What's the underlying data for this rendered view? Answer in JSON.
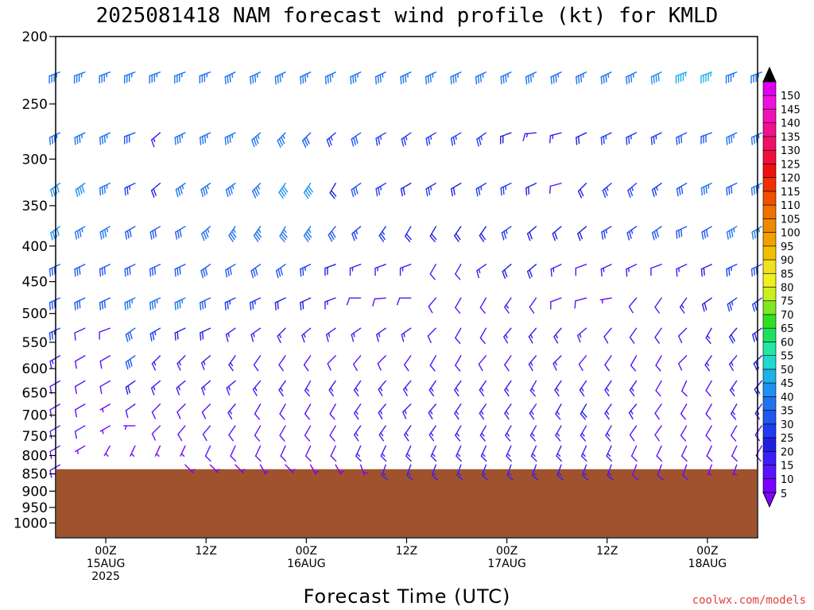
{
  "title": "2025081418 NAM forecast wind profile (kt) for KMLD",
  "credit": "coolwx.com/models",
  "chart_data": {
    "type": "wind-barb-time-height",
    "units": "kt",
    "xlabel": "Forecast Time (UTC)",
    "x_ticks": [
      {
        "hour": 6,
        "lines": [
          "00Z",
          "15AUG",
          "2025"
        ]
      },
      {
        "hour": 18,
        "lines": [
          "12Z"
        ]
      },
      {
        "hour": 30,
        "lines": [
          "00Z",
          "16AUG"
        ]
      },
      {
        "hour": 42,
        "lines": [
          "12Z"
        ]
      },
      {
        "hour": 54,
        "lines": [
          "00Z",
          "17AUG"
        ]
      },
      {
        "hour": 66,
        "lines": [
          "12Z"
        ]
      },
      {
        "hour": 78,
        "lines": [
          "00Z",
          "18AUG"
        ]
      }
    ],
    "xlim_hours": [
      0,
      84
    ],
    "y_scale": "log-pressure",
    "ylim_hpa": [
      1050,
      200
    ],
    "y_ticks": [
      "200",
      "250",
      "300",
      "350",
      "400",
      "450",
      "500",
      "550",
      "600",
      "650",
      "700",
      "750",
      "800",
      "850",
      "900",
      "950",
      "1000"
    ],
    "surface_pressure_hpa": 837,
    "barb_levels_hpa": [
      225,
      275,
      325,
      375,
      425,
      475,
      525,
      575,
      625,
      675,
      725,
      775,
      825
    ],
    "colorbar_ticks": [
      5,
      10,
      15,
      20,
      25,
      30,
      35,
      40,
      45,
      50,
      55,
      60,
      65,
      70,
      75,
      80,
      85,
      90,
      95,
      100,
      105,
      110,
      115,
      120,
      125,
      130,
      135,
      140,
      145,
      150
    ],
    "colorbar_colors": [
      "#7a00ff",
      "#5a12ff",
      "#3a1ef5",
      "#2020e0",
      "#1e3cf0",
      "#1e58f0",
      "#1e74f0",
      "#1e90f0",
      "#1eb0e8",
      "#20d8d0",
      "#20e8a0",
      "#20e060",
      "#30e020",
      "#80e820",
      "#c8f020",
      "#f0f020",
      "#f0e020",
      "#f0c000",
      "#f0a000",
      "#f08800",
      "#f07000",
      "#f05000",
      "#f03000",
      "#f01010",
      "#f0103c",
      "#f01068",
      "#f01090",
      "#f010b8",
      "#f010e0",
      "#e000f0"
    ],
    "colorbar_top_color": "#000000",
    "colorbar_bottom_color": "#8000ff",
    "ground_color": "#a0522d",
    "wind_rows": [
      {
        "p": 225,
        "spd": [
          35,
          35,
          35,
          35,
          35,
          35,
          35,
          35,
          35,
          35,
          35,
          35,
          35,
          35,
          35,
          35,
          35,
          35,
          35,
          35,
          35,
          35,
          35,
          35,
          40,
          45,
          45,
          35,
          35
        ],
        "dir": [
          250,
          250,
          250,
          250,
          250,
          250,
          250,
          245,
          245,
          245,
          245,
          245,
          245,
          245,
          245,
          245,
          245,
          245,
          245,
          245,
          245,
          245,
          245,
          245,
          245,
          250,
          250,
          250,
          250
        ]
      },
      {
        "p": 275,
        "spd": [
          35,
          35,
          35,
          30,
          15,
          35,
          35,
          35,
          35,
          35,
          30,
          25,
          30,
          25,
          25,
          25,
          25,
          25,
          20,
          15,
          15,
          20,
          25,
          25,
          25,
          30,
          30,
          35,
          35
        ],
        "dir": [
          245,
          245,
          245,
          250,
          230,
          245,
          245,
          245,
          230,
          225,
          225,
          230,
          235,
          240,
          235,
          240,
          240,
          235,
          250,
          265,
          255,
          245,
          245,
          245,
          245,
          245,
          250,
          245,
          245
        ]
      },
      {
        "p": 325,
        "spd": [
          40,
          40,
          35,
          25,
          20,
          35,
          35,
          35,
          35,
          40,
          40,
          20,
          30,
          25,
          20,
          25,
          20,
          25,
          25,
          20,
          10,
          20,
          25,
          25,
          25,
          30,
          35,
          30,
          35
        ],
        "dir": [
          235,
          235,
          245,
          245,
          230,
          235,
          235,
          235,
          225,
          215,
          215,
          210,
          235,
          240,
          240,
          240,
          240,
          240,
          245,
          245,
          255,
          225,
          230,
          230,
          235,
          240,
          245,
          245,
          245
        ]
      },
      {
        "p": 375,
        "spd": [
          40,
          35,
          35,
          30,
          30,
          30,
          35,
          35,
          35,
          35,
          35,
          30,
          25,
          25,
          20,
          20,
          20,
          20,
          25,
          20,
          20,
          20,
          25,
          25,
          30,
          30,
          30,
          35,
          35
        ],
        "dir": [
          235,
          240,
          240,
          240,
          240,
          240,
          230,
          215,
          215,
          210,
          215,
          220,
          230,
          215,
          210,
          210,
          215,
          215,
          235,
          230,
          230,
          230,
          240,
          235,
          235,
          245,
          240,
          240,
          240
        ]
      },
      {
        "p": 425,
        "spd": [
          30,
          30,
          30,
          30,
          30,
          30,
          30,
          30,
          30,
          30,
          25,
          20,
          15,
          15,
          15,
          10,
          10,
          15,
          20,
          20,
          15,
          10,
          15,
          15,
          10,
          15,
          20,
          25,
          30
        ],
        "dir": [
          245,
          245,
          245,
          245,
          245,
          245,
          235,
          240,
          235,
          235,
          245,
          250,
          250,
          250,
          250,
          210,
          210,
          235,
          230,
          230,
          245,
          250,
          245,
          245,
          250,
          245,
          245,
          245,
          245
        ]
      },
      {
        "p": 475,
        "spd": [
          30,
          30,
          30,
          35,
          35,
          35,
          30,
          25,
          25,
          20,
          20,
          15,
          10,
          10,
          10,
          10,
          10,
          10,
          15,
          10,
          10,
          10,
          5,
          10,
          10,
          15,
          20,
          25,
          25
        ],
        "dir": [
          245,
          245,
          245,
          245,
          245,
          245,
          245,
          245,
          245,
          245,
          245,
          250,
          270,
          265,
          270,
          220,
          210,
          210,
          215,
          215,
          250,
          255,
          260,
          220,
          215,
          215,
          235,
          235,
          235
        ]
      },
      {
        "p": 525,
        "spd": [
          25,
          10,
          10,
          30,
          25,
          20,
          20,
          15,
          15,
          15,
          15,
          15,
          15,
          15,
          15,
          10,
          10,
          10,
          15,
          15,
          15,
          15,
          10,
          10,
          10,
          10,
          15,
          20,
          20
        ],
        "dir": [
          245,
          245,
          250,
          235,
          240,
          245,
          245,
          235,
          235,
          225,
          230,
          235,
          235,
          235,
          235,
          225,
          210,
          210,
          220,
          220,
          220,
          230,
          220,
          215,
          215,
          225,
          210,
          220,
          235
        ]
      },
      {
        "p": 575,
        "spd": [
          15,
          10,
          10,
          30,
          15,
          15,
          15,
          15,
          10,
          10,
          10,
          10,
          10,
          10,
          10,
          10,
          10,
          10,
          10,
          15,
          15,
          10,
          10,
          10,
          10,
          10,
          15,
          15,
          20
        ],
        "dir": [
          240,
          240,
          240,
          235,
          225,
          225,
          230,
          215,
          215,
          215,
          215,
          225,
          220,
          225,
          215,
          210,
          210,
          220,
          215,
          220,
          225,
          220,
          215,
          210,
          210,
          225,
          215,
          220,
          225
        ]
      },
      {
        "p": 625,
        "spd": [
          10,
          10,
          10,
          20,
          15,
          15,
          15,
          15,
          15,
          15,
          15,
          15,
          15,
          15,
          15,
          15,
          15,
          15,
          15,
          15,
          15,
          15,
          15,
          15,
          10,
          10,
          10,
          15,
          20
        ],
        "dir": [
          240,
          240,
          240,
          235,
          230,
          230,
          230,
          230,
          220,
          215,
          210,
          215,
          215,
          220,
          220,
          215,
          215,
          215,
          215,
          210,
          215,
          215,
          215,
          215,
          210,
          205,
          210,
          215,
          220
        ]
      },
      {
        "p": 675,
        "spd": [
          10,
          10,
          5,
          10,
          10,
          10,
          10,
          15,
          10,
          10,
          10,
          10,
          15,
          15,
          15,
          15,
          15,
          15,
          15,
          15,
          15,
          20,
          15,
          15,
          10,
          10,
          10,
          15,
          15
        ],
        "dir": [
          240,
          240,
          240,
          235,
          225,
          225,
          225,
          220,
          210,
          210,
          210,
          210,
          215,
          220,
          225,
          220,
          215,
          215,
          215,
          215,
          210,
          210,
          215,
          220,
          215,
          210,
          210,
          210,
          215
        ]
      },
      {
        "p": 725,
        "spd": [
          10,
          10,
          5,
          5,
          10,
          10,
          10,
          10,
          10,
          10,
          10,
          10,
          15,
          15,
          15,
          15,
          15,
          15,
          15,
          15,
          15,
          15,
          15,
          10,
          10,
          10,
          10,
          10,
          10
        ],
        "dir": [
          240,
          240,
          240,
          270,
          225,
          220,
          220,
          215,
          210,
          210,
          210,
          210,
          215,
          215,
          215,
          215,
          210,
          210,
          210,
          210,
          210,
          210,
          210,
          215,
          215,
          210,
          210,
          210,
          215
        ]
      },
      {
        "p": 775,
        "spd": [
          10,
          5,
          5,
          5,
          5,
          5,
          10,
          10,
          10,
          10,
          10,
          10,
          15,
          15,
          15,
          15,
          15,
          15,
          15,
          15,
          15,
          15,
          15,
          10,
          10,
          10,
          10,
          10,
          10
        ],
        "dir": [
          240,
          240,
          210,
          205,
          205,
          205,
          205,
          205,
          205,
          205,
          205,
          205,
          205,
          205,
          205,
          205,
          205,
          205,
          205,
          205,
          205,
          205,
          205,
          205,
          205,
          205,
          205,
          205,
          210
        ]
      },
      {
        "p": 825,
        "spd": [
          10,
          null,
          null,
          null,
          null,
          5,
          5,
          5,
          5,
          5,
          5,
          5,
          5,
          15,
          15,
          15,
          15,
          15,
          15,
          15,
          15,
          15,
          15,
          10,
          10,
          10,
          5,
          5,
          null
        ],
        "dir": [
          240,
          0,
          0,
          0,
          0,
          135,
          135,
          135,
          150,
          135,
          150,
          150,
          160,
          200,
          200,
          200,
          200,
          200,
          200,
          200,
          200,
          200,
          200,
          200,
          200,
          200,
          200,
          200,
          0
        ]
      }
    ]
  }
}
